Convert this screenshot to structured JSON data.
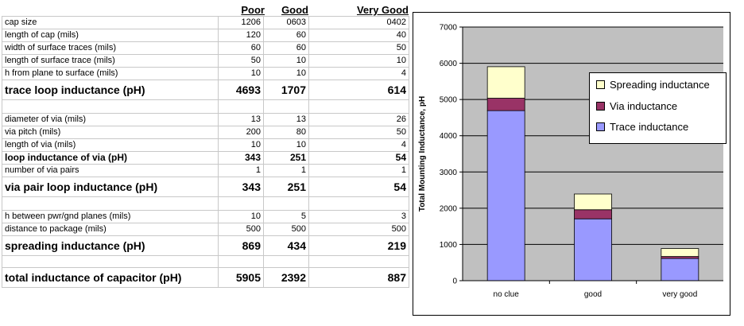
{
  "table": {
    "headers": [
      "Poor",
      "Good",
      "Very Good"
    ],
    "rows": [
      {
        "label": "cap size",
        "values": [
          "1206",
          "0603",
          "0402"
        ],
        "style": "normal"
      },
      {
        "label": "length of cap (mils)",
        "values": [
          "120",
          "60",
          "40"
        ],
        "style": "normal"
      },
      {
        "label": "width of surface traces (mils)",
        "values": [
          "60",
          "60",
          "50"
        ],
        "style": "normal"
      },
      {
        "label": "length of surface trace (mils)",
        "values": [
          "50",
          "10",
          "10"
        ],
        "style": "normal"
      },
      {
        "label": "h from plane to surface (mils)",
        "values": [
          "10",
          "10",
          "4"
        ],
        "style": "normal"
      },
      {
        "label": "trace loop inductance (pH)",
        "values": [
          "4693",
          "1707",
          "614"
        ],
        "style": "big"
      },
      {
        "label": "",
        "values": [
          "",
          "",
          ""
        ],
        "style": "gap"
      },
      {
        "label": "diameter of via (mils)",
        "values": [
          "13",
          "13",
          "26"
        ],
        "style": "normal"
      },
      {
        "label": "via pitch (mils)",
        "values": [
          "200",
          "80",
          "50"
        ],
        "style": "normal"
      },
      {
        "label": "length of via (mils)",
        "values": [
          "10",
          "10",
          "4"
        ],
        "style": "normal"
      },
      {
        "label": "loop inductance of via (pH)",
        "values": [
          "343",
          "251",
          "54"
        ],
        "style": "mid"
      },
      {
        "label": "number of via pairs",
        "values": [
          "1",
          "1",
          "1"
        ],
        "style": "normal"
      },
      {
        "label": "via pair loop inductance (pH)",
        "values": [
          "343",
          "251",
          "54"
        ],
        "style": "big"
      },
      {
        "label": "",
        "values": [
          "",
          "",
          ""
        ],
        "style": "gap"
      },
      {
        "label": "h between pwr/gnd planes (mils)",
        "values": [
          "10",
          "5",
          "3"
        ],
        "style": "normal"
      },
      {
        "label": "distance to package (mils)",
        "values": [
          "500",
          "500",
          "500"
        ],
        "style": "normal"
      },
      {
        "label": "spreading inductance (pH)",
        "values": [
          "869",
          "434",
          "219"
        ],
        "style": "big"
      },
      {
        "label": "",
        "values": [
          "",
          "",
          ""
        ],
        "style": "gap2"
      },
      {
        "label": "total inductance of capacitor (pH)",
        "values": [
          "5905",
          "2392",
          "887"
        ],
        "style": "big"
      }
    ]
  },
  "chart_data": {
    "type": "bar",
    "stacked": true,
    "categories": [
      "no clue",
      "good",
      "very good"
    ],
    "series": [
      {
        "name": "Trace inductance",
        "values": [
          4693,
          1707,
          614
        ],
        "color": "#9999ff"
      },
      {
        "name": "Via inductance",
        "values": [
          343,
          251,
          54
        ],
        "color": "#993366"
      },
      {
        "name": "Spreading inductance",
        "values": [
          869,
          434,
          219
        ],
        "color": "#ffffcc"
      }
    ],
    "legend_order": [
      "Spreading inductance",
      "Via inductance",
      "Trace inductance"
    ],
    "ylabel": "Total Mounting Inductance, pH",
    "xlabel": "",
    "ylim": [
      0,
      7000
    ],
    "yticks": [
      "0",
      "1000",
      "2000",
      "3000",
      "4000",
      "5000",
      "6000",
      "7000"
    ],
    "grid": true,
    "plot_background": "#c0c0c0",
    "legend_position": "top-right"
  }
}
